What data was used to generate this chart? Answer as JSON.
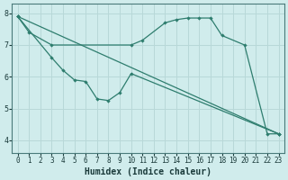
{
  "bg_color": "#d0ecec",
  "grid_color": "#b8d8d8",
  "line_color": "#2e7d6e",
  "xlabel": "Humidex (Indice chaleur)",
  "ylim": [
    3.6,
    8.3
  ],
  "xlim": [
    -0.5,
    23.5
  ],
  "yticks": [
    4,
    5,
    6,
    7,
    8
  ],
  "xticks": [
    0,
    1,
    2,
    3,
    4,
    5,
    6,
    7,
    8,
    9,
    10,
    11,
    12,
    13,
    14,
    15,
    16,
    17,
    18,
    19,
    20,
    21,
    22,
    23
  ],
  "line1_x": [
    0,
    1,
    3,
    10,
    11,
    13,
    14,
    15,
    16,
    17,
    18,
    20,
    22,
    23
  ],
  "line1_y": [
    7.9,
    7.4,
    7.0,
    7.0,
    7.15,
    7.7,
    7.8,
    7.85,
    7.85,
    7.85,
    7.3,
    7.0,
    4.2,
    4.2
  ],
  "line2_x": [
    0,
    3,
    4,
    5,
    6,
    7,
    8,
    9,
    10,
    23
  ],
  "line2_y": [
    7.9,
    6.6,
    6.2,
    5.9,
    5.85,
    5.3,
    5.25,
    5.5,
    6.1,
    4.2
  ],
  "line3_x": [
    0,
    23
  ],
  "line3_y": [
    7.9,
    4.2
  ]
}
